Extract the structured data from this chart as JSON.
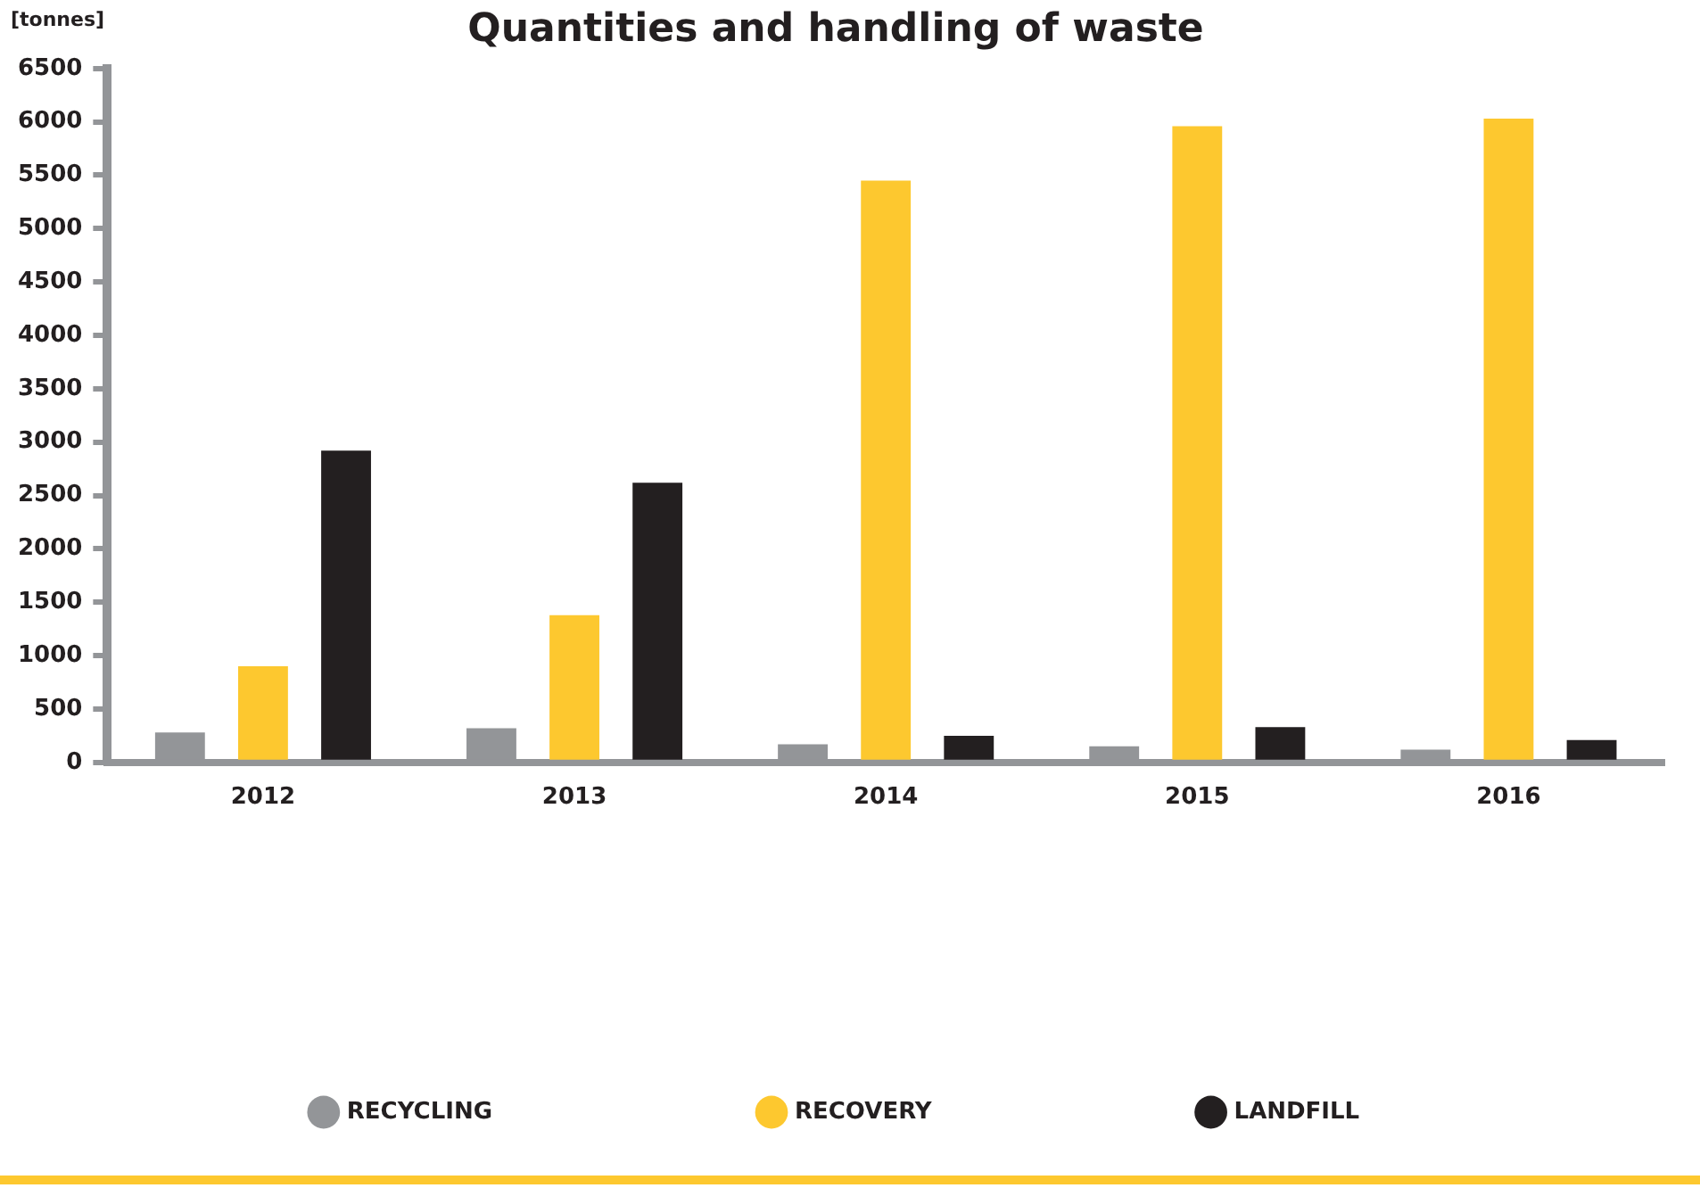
{
  "chart_data": {
    "type": "bar",
    "title": "Quantities and handling of waste",
    "ylabel": "[tonnes]",
    "categories": [
      "2012",
      "2013",
      "2014",
      "2015",
      "2016"
    ],
    "series": [
      {
        "name": "RECYCLING",
        "color": "#939598",
        "values": [
          280,
          320,
          170,
          150,
          120
        ]
      },
      {
        "name": "RECOVERY",
        "color": "#fdc82f",
        "values": [
          900,
          1380,
          5450,
          5960,
          6030
        ]
      },
      {
        "name": "LANDFILL",
        "color": "#231f20",
        "values": [
          2920,
          2620,
          250,
          330,
          210
        ]
      }
    ],
    "ylim": [
      0,
      6500
    ],
    "yticks": [
      0,
      500,
      1000,
      1500,
      2000,
      2500,
      3000,
      3500,
      4000,
      4500,
      5000,
      5500,
      6000,
      6500
    ],
    "grid": false,
    "legend": "bottom"
  }
}
